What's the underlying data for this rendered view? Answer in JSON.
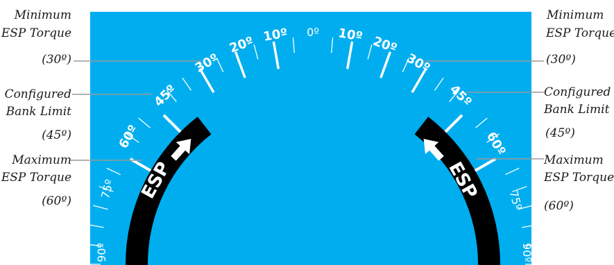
{
  "colors": {
    "sky": "#00aeef",
    "band": "#000000",
    "tick": "#ffffff",
    "leader": "#9a9a9a"
  },
  "band_label": "ESP",
  "scale": {
    "zero": "0º",
    "ten": "10º",
    "twenty": "20º",
    "thirty": "30º",
    "forty_five": "45º",
    "sixty": "60º",
    "seventy_five": "75º",
    "ninety": "90º"
  },
  "callouts": {
    "left": {
      "min_title_1": "Minimum",
      "min_title_2": "ESP Torque",
      "min_value": "(30º)",
      "bank_title_1": "Configured",
      "bank_title_2": "Bank Limit",
      "bank_value": "(45º)",
      "max_title_1": "Maximum",
      "max_title_2": "ESP Torque",
      "max_value": "(60º)"
    },
    "right": {
      "min_title_1": "Minimum",
      "min_title_2": "ESP Torque",
      "min_value": "(30º)",
      "bank_title_1": "Configured",
      "bank_title_2": "Bank Limit",
      "bank_value": "(45º)",
      "max_title_1": "Maximum",
      "max_title_2": "ESP Torque",
      "max_value": "(60º)"
    }
  }
}
